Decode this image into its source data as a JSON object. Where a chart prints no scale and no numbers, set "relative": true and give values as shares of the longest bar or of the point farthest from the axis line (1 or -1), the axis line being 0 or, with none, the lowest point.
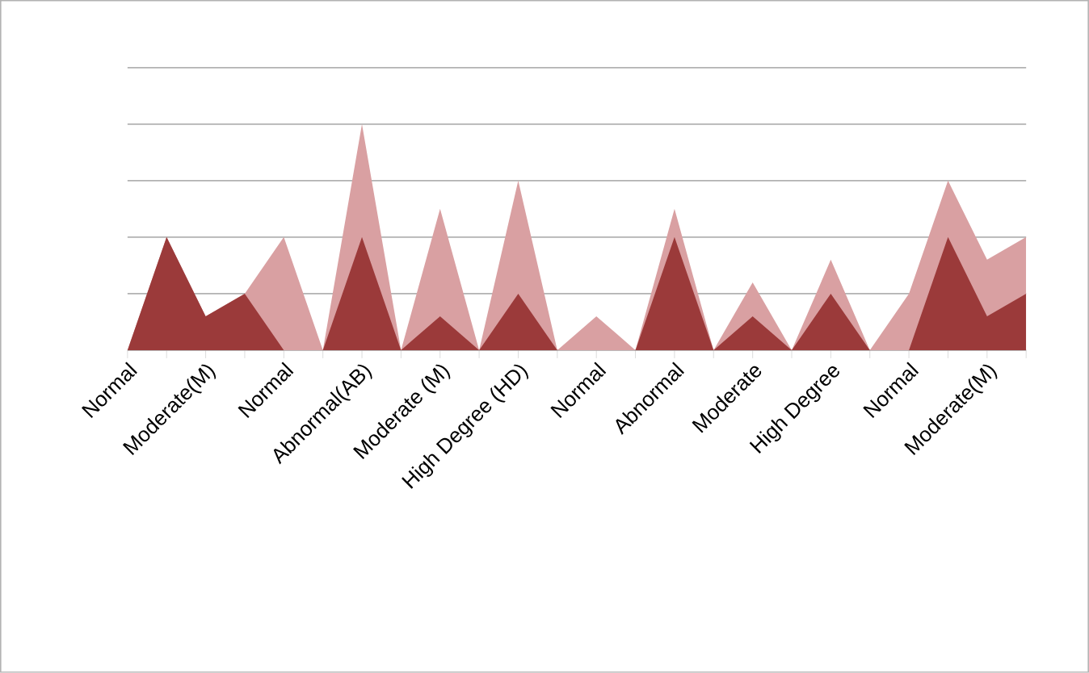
{
  "chart_data": {
    "type": "area",
    "relative": true,
    "grid": "y",
    "categories": [
      "Normal",
      null,
      "Moderate(M)",
      null,
      "Normal",
      null,
      "Abnormal(AB)",
      null,
      "Moderate (M)",
      null,
      "High Degree (HD)",
      null,
      "Normal",
      null,
      "Abnormal",
      null,
      "Moderate",
      null,
      "High Degree",
      null,
      "Normal",
      null,
      "Moderate(M)",
      null
    ],
    "series": [
      {
        "color": "#d9a0a2",
        "values": [
          0,
          0.5,
          0.15,
          0.25,
          0.5,
          0,
          1,
          0,
          0.625,
          0,
          0.75,
          0,
          0.15,
          0,
          0.625,
          0,
          0.3,
          0,
          0.4,
          0,
          0.25,
          0.75,
          0.4,
          0.5
        ]
      },
      {
        "color": "#9b3a3a",
        "values": [
          0,
          0.5,
          0.15,
          0.25,
          0,
          0,
          0.5,
          0,
          0.15,
          0,
          0.25,
          0,
          0,
          0,
          0.5,
          0,
          0.15,
          0,
          0.25,
          0,
          0,
          0.5,
          0.15,
          0.25
        ]
      }
    ]
  }
}
